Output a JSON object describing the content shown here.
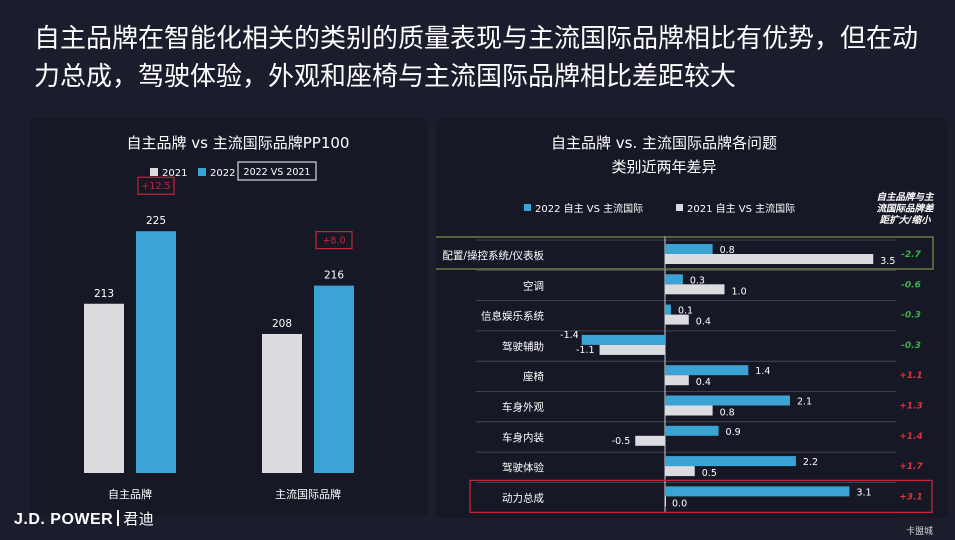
{
  "title": "自主品牌在智能化相关的类别的质量表现与主流国际品牌相比有优势，但在动力总成，驾驶体验，外观和座椅与主流国际品牌相比差距较大",
  "watermark": "卡盟城",
  "logo": {
    "brand": "J.D. POWER",
    "cn": "君迪"
  },
  "colors": {
    "bar_2021": "#dcdce0",
    "bar_2022": "#3ba4d4",
    "highlight_red": "#c2263a",
    "highlight_green": "#7a8a4a",
    "neg_text": "#3fae49",
    "pos_text": "#e0303c"
  },
  "chart_data": [
    {
      "type": "bar",
      "title": "自主品牌 vs 主流国际品牌PP100",
      "categories": [
        "自主品牌",
        "主流国际品牌"
      ],
      "series": [
        {
          "name": "2021",
          "values": [
            213,
            208
          ]
        },
        {
          "name": "2022",
          "values": [
            225,
            216
          ]
        }
      ],
      "legend_note": "2022 VS 2021",
      "annotations": [
        "+12.5",
        "+8.0"
      ],
      "ylim": [
        185,
        230
      ]
    },
    {
      "type": "bar",
      "orientation": "horizontal",
      "title": "自主品牌 vs. 主流国际品牌各问题类别近两年差异",
      "categories": [
        "配置/操控系统/仪表板",
        "空调",
        "信息娱乐系统",
        "驾驶辅助",
        "座椅",
        "车身外观",
        "车身内装",
        "驾驶体验",
        "动力总成"
      ],
      "series": [
        {
          "name": "2022 自主 VS 主流国际",
          "values": [
            0.8,
            0.3,
            0.1,
            -1.4,
            1.4,
            2.1,
            0.9,
            2.2,
            3.1
          ]
        },
        {
          "name": "2021 自主 VS 主流国际",
          "values": [
            3.5,
            1.0,
            0.4,
            -1.1,
            0.4,
            0.8,
            -0.5,
            0.5,
            0.0
          ]
        }
      ],
      "value_labels_2022": [
        "0.8",
        "0.3",
        "0.1",
        "-1.4",
        "1.4",
        "2.1",
        "0.9",
        "2.2",
        "3.1"
      ],
      "value_labels_2021": [
        "3.5",
        "1.0",
        "0.4",
        "-1.1",
        "0.4",
        "0.8",
        "-0.5",
        "0.5",
        "0.0"
      ],
      "gap_header": "自主品牌与主流国际品牌差距扩大/缩小",
      "gap_labels": [
        "-2.7",
        "-0.6",
        "-0.3",
        "-0.3",
        "+1.1",
        "+1.3",
        "+1.4",
        "+1.7",
        "+3.1"
      ],
      "highlighted_categories": [
        "配置/操控系统/仪表板",
        "动力总成"
      ],
      "xlim": [
        -2,
        4
      ]
    }
  ]
}
